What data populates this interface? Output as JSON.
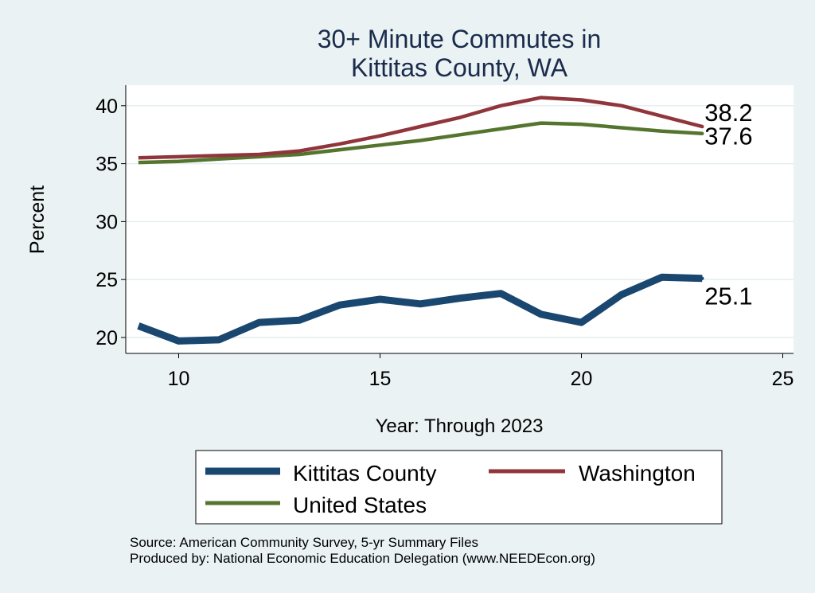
{
  "colors": {
    "background": "#eaf2f3",
    "plot_background": "#ffffff",
    "title": "#1a2b4c",
    "kittitas": "#1a476f",
    "washington": "#90353b",
    "united_states": "#55752f"
  },
  "chart_data": {
    "type": "line",
    "title": [
      "30+ Minute Commutes in",
      "Kittitas County, WA"
    ],
    "xlabel": "Year: Through 2023",
    "ylabel": "Percent",
    "xlim": [
      9,
      25
    ],
    "ylim": [
      19.5,
      41.8
    ],
    "xticks": [
      10,
      15,
      20,
      25
    ],
    "yticks": [
      20,
      25,
      30,
      35,
      40
    ],
    "grid": true,
    "legend_position": "bottom",
    "x": [
      9,
      10,
      11,
      12,
      13,
      14,
      15,
      16,
      17,
      18,
      19,
      20,
      21,
      22,
      23
    ],
    "series": [
      {
        "key": "kittitas",
        "name": "Kittitas County",
        "color": "#1a476f",
        "values": [
          21.0,
          19.7,
          19.8,
          21.3,
          21.5,
          22.8,
          23.3,
          22.9,
          23.4,
          23.8,
          22.0,
          21.3,
          23.7,
          25.2,
          25.1
        ],
        "end_label": "25.1"
      },
      {
        "key": "washington",
        "name": "Washington",
        "color": "#90353b",
        "values": [
          35.5,
          35.6,
          35.7,
          35.8,
          36.1,
          36.7,
          37.4,
          38.2,
          39.0,
          40.0,
          40.7,
          40.5,
          40.0,
          39.1,
          38.2
        ],
        "end_label": "38.2"
      },
      {
        "key": "united_states",
        "name": "United States",
        "color": "#55752f",
        "values": [
          35.1,
          35.2,
          35.4,
          35.6,
          35.8,
          36.2,
          36.6,
          37.0,
          37.5,
          38.0,
          38.5,
          38.4,
          38.1,
          37.8,
          37.6
        ],
        "end_label": "37.6"
      }
    ],
    "source": "Source: American Community Survey, 5-yr Summary Files",
    "produced_by": "Produced by: National Economic Education Delegation (www.NEEDEcon.org)"
  }
}
